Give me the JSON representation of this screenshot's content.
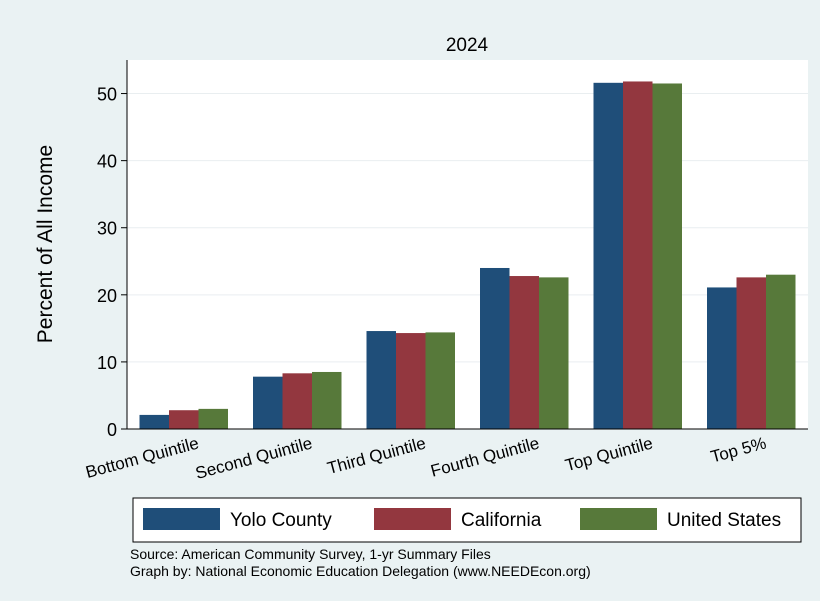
{
  "chart_data": {
    "type": "bar",
    "title": "2024",
    "ylabel": "Percent of All Income",
    "xlabel": "",
    "ylim": [
      0,
      55
    ],
    "yticks": [
      0,
      10,
      20,
      30,
      40,
      50
    ],
    "grid": true,
    "legend_position": "bottom",
    "categories": [
      "Bottom Quintile",
      "Second Quintile",
      "Third Quintile",
      "Fourth Quintile",
      "Top Quintile",
      "Top 5%"
    ],
    "series": [
      {
        "name": "Yolo County",
        "color": "#1f4e79",
        "values": [
          2.1,
          7.8,
          14.6,
          24.0,
          51.6,
          21.1
        ]
      },
      {
        "name": "California",
        "color": "#93373f",
        "values": [
          2.8,
          8.3,
          14.3,
          22.8,
          51.8,
          22.6
        ]
      },
      {
        "name": "United States",
        "color": "#57793a",
        "values": [
          3.0,
          8.5,
          14.4,
          22.6,
          51.5,
          23.0
        ]
      }
    ]
  },
  "source": {
    "line1": "Source: American Community Survey, 1-yr Summary Files",
    "line2": "Graph by: National Economic Education Delegation (www.NEEDEcon.org)"
  }
}
